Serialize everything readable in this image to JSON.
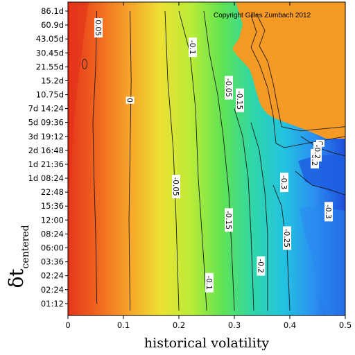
{
  "chart_data": {
    "type": "heatmap",
    "plot_kind": "contour map",
    "xlabel": "historical volatility",
    "ylabel": "δt",
    "ylabel_subscript": "centered",
    "xlim": [
      0,
      0.5
    ],
    "x_ticks": [
      "0",
      "0.1",
      "0.2",
      "0.3",
      "0.4",
      "0.5"
    ],
    "y_ticks_top_to_bottom": [
      "86.1d",
      "60.9d",
      "43.05d",
      "30.45d",
      "21.55d",
      "15.2d",
      "10.75d",
      "7d 14:24",
      "5d 09:36",
      "3d 19:12",
      "2d 16:48",
      "1d 21:36",
      "1d 08:24",
      "22:48",
      "15:36",
      "12:00",
      "08:24",
      "06:00",
      "03:36",
      "02:24",
      "02:24",
      "01:12"
    ],
    "copyright": "Copyright Gilles Zumbach 2012",
    "colormap": [
      "#e5351c",
      "#f0681f",
      "#f6a52b",
      "#eee033",
      "#b9ec37",
      "#60e352",
      "#2fd6a8",
      "#23c3e0",
      "#2b8ff2",
      "#1f4ddb"
    ],
    "masked_region_color": "#f59a24",
    "contour_levels": [
      "0.05",
      "0",
      "-0.05",
      "-0.1",
      "-0.15",
      "-0.2",
      "-0.25",
      "-0.3"
    ],
    "contour_labels": [
      {
        "text": "0.05",
        "x": 0.055,
        "row": 1.2
      },
      {
        "text": "0",
        "x": 0.112,
        "row": 6.4
      },
      {
        "text": "-0.1",
        "x": 0.225,
        "row": 2.6
      },
      {
        "text": "-0.05",
        "x": 0.195,
        "row": 12.6
      },
      {
        "text": "-0.05",
        "x": 0.29,
        "row": 5.5
      },
      {
        "text": "-0.15",
        "x": 0.31,
        "row": 6.4
      },
      {
        "text": "-0.15",
        "x": 0.29,
        "row": 15.0
      },
      {
        "text": "-0.1",
        "x": 0.255,
        "row": 19.5
      },
      {
        "text": "-0.2",
        "x": 0.348,
        "row": 18.3
      },
      {
        "text": "-0.25",
        "x": 0.395,
        "row": 16.3
      },
      {
        "text": "-0.3",
        "x": 0.39,
        "row": 12.3
      },
      {
        "text": "-0.3",
        "x": 0.47,
        "row": 14.4
      },
      {
        "text": "0",
        "x": 0.455,
        "row": 9.5
      },
      {
        "text": "-0.2",
        "x": 0.445,
        "row": 10.6
      },
      {
        "text": "-0.2",
        "x": 0.45,
        "row": 10.1
      }
    ]
  }
}
